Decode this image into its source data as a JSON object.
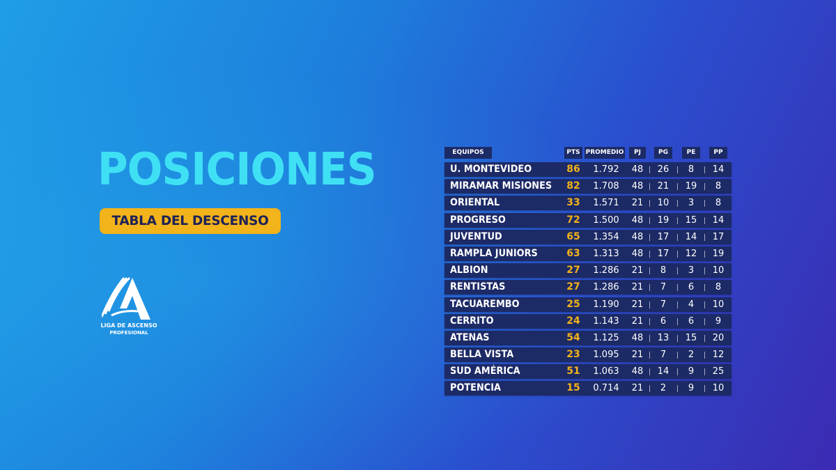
{
  "header": {
    "title": "POSICIONES",
    "subtitle": "TABLA DEL DESCENSO"
  },
  "logo": {
    "line1": "LIGA DE ASCENSO",
    "line2": "PROFESIONAL",
    "icon": "liga-ascenso-logo"
  },
  "colors": {
    "accent_title": "#3fe0f4",
    "badge": "#f3b31a",
    "row_bg": "#1c2a66",
    "pts_color": "#f3b31a"
  },
  "table": {
    "columns": [
      "EQUIPOS",
      "PTS",
      "PROMEDIO",
      "PJ",
      "PG",
      "PE",
      "PP"
    ],
    "rows": [
      {
        "team": "U. MONTEVIDEO",
        "pts": "86",
        "promedio": "1.792",
        "pj": "48",
        "pg": "26",
        "pe": "8",
        "pp": "14"
      },
      {
        "team": "MIRAMAR MISIONES",
        "pts": "82",
        "promedio": "1.708",
        "pj": "48",
        "pg": "21",
        "pe": "19",
        "pp": "8"
      },
      {
        "team": "ORIENTAL",
        "pts": "33",
        "promedio": "1.571",
        "pj": "21",
        "pg": "10",
        "pe": "3",
        "pp": "8"
      },
      {
        "team": "PROGRESO",
        "pts": "72",
        "promedio": "1.500",
        "pj": "48",
        "pg": "19",
        "pe": "15",
        "pp": "14"
      },
      {
        "team": "JUVENTUD",
        "pts": "65",
        "promedio": "1.354",
        "pj": "48",
        "pg": "17",
        "pe": "14",
        "pp": "17"
      },
      {
        "team": "RAMPLA JUNIORS",
        "pts": "63",
        "promedio": "1.313",
        "pj": "48",
        "pg": "17",
        "pe": "12",
        "pp": "19"
      },
      {
        "team": "ALBION",
        "pts": "27",
        "promedio": "1.286",
        "pj": "21",
        "pg": "8",
        "pe": "3",
        "pp": "10"
      },
      {
        "team": "RENTISTAS",
        "pts": "27",
        "promedio": "1.286",
        "pj": "21",
        "pg": "7",
        "pe": "6",
        "pp": "8"
      },
      {
        "team": "TACUAREMBO",
        "pts": "25",
        "promedio": "1.190",
        "pj": "21",
        "pg": "7",
        "pe": "4",
        "pp": "10"
      },
      {
        "team": "CERRITO",
        "pts": "24",
        "promedio": "1.143",
        "pj": "21",
        "pg": "6",
        "pe": "6",
        "pp": "9"
      },
      {
        "team": "ATENAS",
        "pts": "54",
        "promedio": "1.125",
        "pj": "48",
        "pg": "13",
        "pe": "15",
        "pp": "20"
      },
      {
        "team": "BELLA VISTA",
        "pts": "23",
        "promedio": "1.095",
        "pj": "21",
        "pg": "7",
        "pe": "2",
        "pp": "12"
      },
      {
        "team": "SUD AMÉRICA",
        "pts": "51",
        "promedio": "1.063",
        "pj": "48",
        "pg": "14",
        "pe": "9",
        "pp": "25"
      },
      {
        "team": "POTENCIA",
        "pts": "15",
        "promedio": "0.714",
        "pj": "21",
        "pg": "2",
        "pe": "9",
        "pp": "10"
      }
    ]
  }
}
